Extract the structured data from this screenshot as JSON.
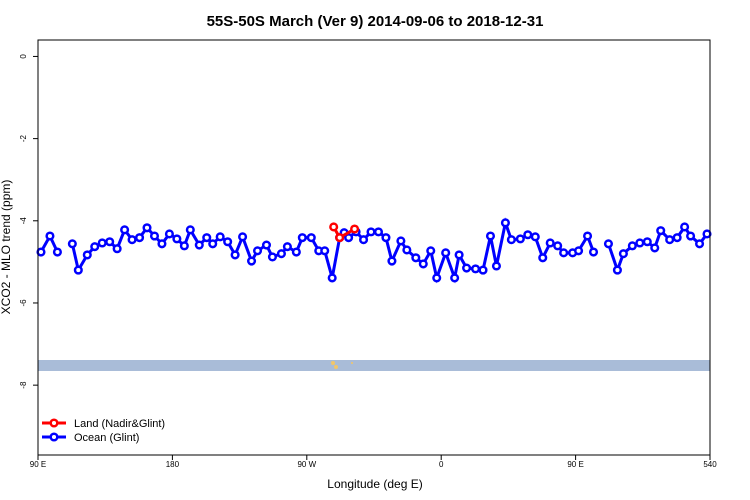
{
  "chart_data": {
    "type": "line",
    "title": "55S-50S March (Ver 9)   2014-09-06 to 2018-12-31",
    "x_label": "Longitude (deg E)",
    "y_label": "XCO2 - MLO trend (ppm)",
    "xlim": [
      90,
      540
    ],
    "ylim": [
      -9.7,
      0.4
    ],
    "xticks": [
      {
        "value": 90,
        "label": "90 E"
      },
      180,
      {
        "value": 270,
        "label": "90 W"
      },
      {
        "value": 360,
        "label": "0"
      },
      {
        "value": 450,
        "label": "90 E"
      },
      540
    ],
    "yticks": [
      0,
      -2,
      -4,
      -6,
      -8
    ],
    "legend": "bottom-left",
    "series": [
      {
        "name": "Land (Nadir&Glint)",
        "color": "#ff0000",
        "x": [
          288,
          292,
          302
        ],
        "values": [
          -4.15,
          -4.41,
          -4.2
        ]
      },
      {
        "name": "Ocean (Glint)",
        "color": "#0000ff",
        "x": [
          92,
          98,
          103,
          108,
          113,
          117,
          123,
          128,
          133,
          138,
          143,
          148,
          153,
          158,
          163,
          168,
          173,
          178,
          183,
          188,
          192,
          198,
          203,
          207,
          212,
          217,
          222,
          227,
          233,
          237,
          243,
          247,
          253,
          257,
          263,
          267,
          273,
          278,
          282,
          287,
          292,
          295,
          298,
          303,
          308,
          313,
          318,
          323,
          327,
          333,
          337,
          343,
          348,
          353,
          357,
          363,
          369,
          372,
          377,
          383,
          388,
          393,
          397,
          403,
          407,
          413,
          418,
          423,
          428,
          433,
          438,
          442,
          448,
          452,
          458,
          462,
          467,
          472,
          478,
          482,
          488,
          493,
          498,
          503,
          507,
          513,
          518,
          523,
          527,
          533,
          538
        ],
        "values": [
          -4.76,
          -4.37,
          -4.76,
          null,
          -4.56,
          -5.2,
          -4.83,
          -4.63,
          -4.54,
          -4.51,
          -4.68,
          -4.22,
          -4.46,
          -4.41,
          -4.17,
          -4.37,
          -4.56,
          -4.32,
          -4.44,
          -4.61,
          -4.22,
          -4.59,
          -4.41,
          -4.56,
          -4.39,
          -4.51,
          -4.83,
          -4.39,
          -4.98,
          -4.73,
          -4.59,
          -4.88,
          -4.8,
          -4.63,
          -4.76,
          -4.41,
          -4.41,
          -4.73,
          -4.73,
          -5.39,
          -4.41,
          -4.29,
          -4.41,
          -4.27,
          -4.46,
          -4.27,
          -4.27,
          -4.41,
          -4.98,
          -4.49,
          -4.71,
          -4.9,
          -5.05,
          -4.73,
          -5.39,
          -4.78,
          -5.39,
          -4.83,
          -5.15,
          -5.17,
          -5.2,
          -4.37,
          -5.1,
          -4.05,
          -4.46,
          -4.44,
          -4.34,
          -4.39,
          -4.9,
          -4.54,
          -4.61,
          -4.78,
          -4.78,
          -4.73,
          -4.37,
          -4.76,
          null,
          -4.56,
          -5.2,
          -4.8,
          -4.61,
          -4.54,
          -4.51,
          -4.66,
          -4.24,
          -4.46,
          -4.41,
          -4.15,
          -4.37,
          -4.56,
          -4.32
        ]
      }
    ]
  }
}
